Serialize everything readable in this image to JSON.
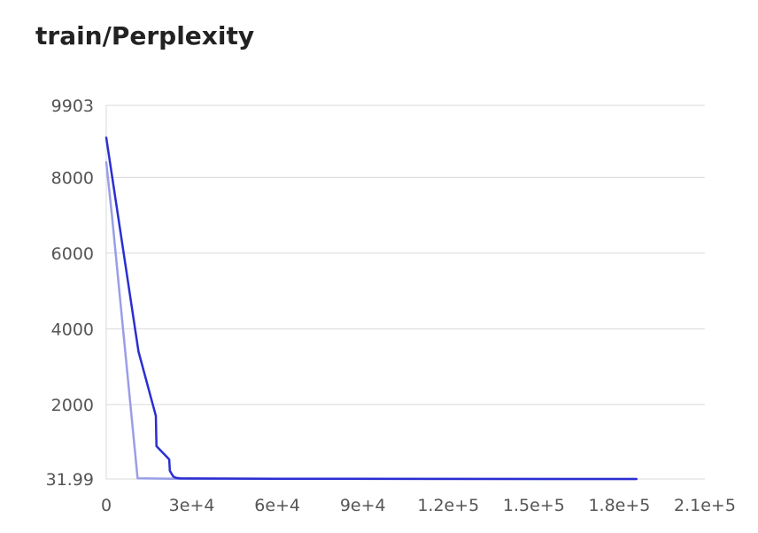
{
  "chart_data": {
    "type": "line",
    "title": "train/Perplexity",
    "xlabel": "",
    "ylabel": "",
    "xlim": [
      0,
      210000
    ],
    "ylim": [
      31.99,
      9903
    ],
    "grid": true,
    "x_ticks": [
      {
        "value": 0,
        "label": "0"
      },
      {
        "value": 30000,
        "label": "3e+4"
      },
      {
        "value": 60000,
        "label": "6e+4"
      },
      {
        "value": 90000,
        "label": "9e+4"
      },
      {
        "value": 120000,
        "label": "1.2e+5"
      },
      {
        "value": 150000,
        "label": "1.5e+5"
      },
      {
        "value": 180000,
        "label": "1.8e+5"
      },
      {
        "value": 210000,
        "label": "2.1e+5"
      }
    ],
    "y_ticks": [
      {
        "value": 31.99,
        "label": "31.99"
      },
      {
        "value": 2000,
        "label": "2000"
      },
      {
        "value": 4000,
        "label": "4000"
      },
      {
        "value": 6000,
        "label": "6000"
      },
      {
        "value": 8000,
        "label": "8000"
      },
      {
        "value": 9903,
        "label": "9903"
      }
    ],
    "series": [
      {
        "color": "#9a9ee6",
        "x": [
          0,
          2000,
          11000,
          24000,
          50000,
          90000,
          120000,
          150000,
          186000
        ],
        "y": [
          8400,
          7000,
          50,
          40,
          36,
          34,
          33,
          33,
          32
        ]
      },
      {
        "color": "#2a2ed1",
        "x": [
          0,
          11300,
          17400,
          17600,
          22100,
          22300,
          23500,
          24500,
          26000,
          30000,
          60000,
          120000,
          186000
        ],
        "y": [
          9050,
          3400,
          1700,
          900,
          550,
          250,
          100,
          60,
          50,
          45,
          38,
          34,
          33
        ]
      }
    ]
  }
}
